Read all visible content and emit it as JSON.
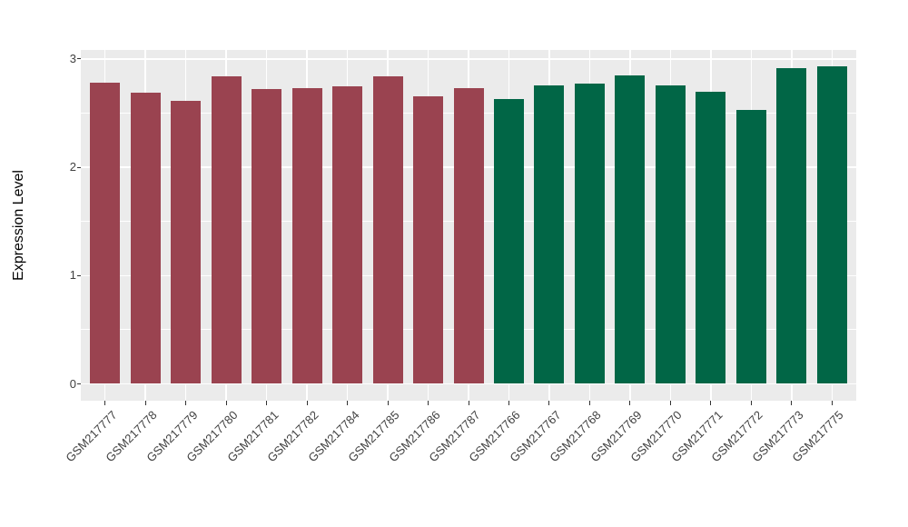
{
  "chart_data": {
    "type": "bar",
    "title": "",
    "xlabel": "",
    "ylabel": "Expression Level",
    "ylim": [
      0,
      3
    ],
    "yticks": [
      "0",
      "1",
      "2",
      "3"
    ],
    "yticks_minor": [
      0.5,
      1.5,
      2.5
    ],
    "grid": true,
    "legend": false,
    "categories": [
      "GSM217777",
      "GSM217778",
      "GSM217779",
      "GSM217780",
      "GSM217781",
      "GSM217782",
      "GSM217784",
      "GSM217785",
      "GSM217786",
      "GSM217787",
      "GSM217766",
      "GSM217767",
      "GSM217768",
      "GSM217769",
      "GSM217770",
      "GSM217771",
      "GSM217772",
      "GSM217773",
      "GSM217775"
    ],
    "values": [
      2.78,
      2.69,
      2.61,
      2.84,
      2.72,
      2.73,
      2.75,
      2.84,
      2.66,
      2.73,
      2.63,
      2.76,
      2.77,
      2.85,
      2.76,
      2.7,
      2.53,
      2.92,
      2.93
    ],
    "groups": [
      "A",
      "A",
      "A",
      "A",
      "A",
      "A",
      "A",
      "A",
      "A",
      "A",
      "B",
      "B",
      "B",
      "B",
      "B",
      "B",
      "B",
      "B",
      "B"
    ],
    "group_colors": {
      "A": "#9A4350",
      "B": "#016646"
    }
  },
  "style": {
    "panel_bg": "#EBEBEB",
    "grid_color": "#FFFFFF",
    "tick_color": "#333333",
    "tick_label_color": "#404040",
    "axis_title_color": "#000000",
    "background": "#FFFFFF"
  }
}
